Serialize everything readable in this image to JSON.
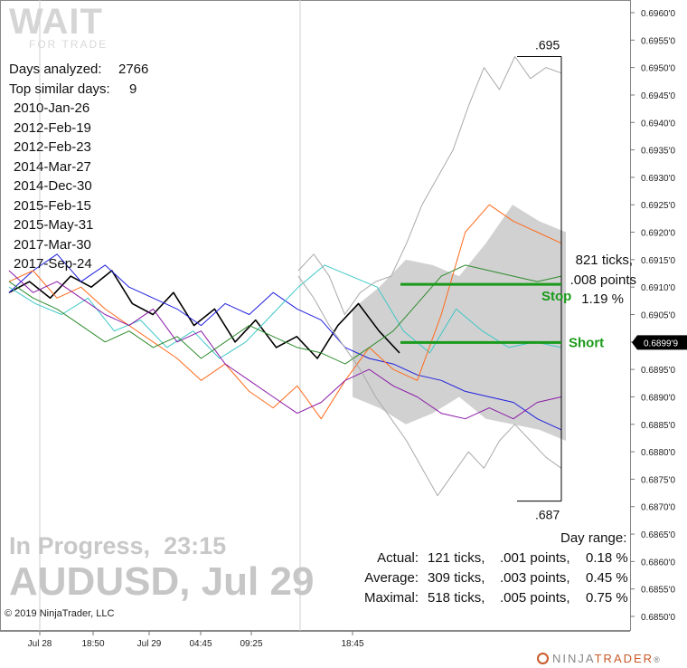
{
  "logo": {
    "main": "WAIT",
    "sub": "FOR TRADE"
  },
  "stats": {
    "days_analyzed_label": "Days analyzed:",
    "days_analyzed_value": "2766",
    "top_similar_label": "Top similar days:",
    "top_similar_value": "9",
    "similar_days": [
      "2010-Jan-26",
      "2012-Feb-19",
      "2012-Feb-23",
      "2014-Mar-27",
      "2014-Dec-30",
      "2015-Feb-15",
      "2015-May-31",
      "2017-Mar-30",
      "2017-Sep-24"
    ]
  },
  "status": {
    "text": "In Progress,",
    "time": "23:15"
  },
  "instrument": {
    "symbol": "AUDUSD,",
    "date": "Jul 29"
  },
  "copyright": "© 2019 NinjaTrader, LLC",
  "brand": {
    "ninja": "NINJA",
    "trader": "TRADER",
    "suffix": "®"
  },
  "annotations": {
    "range_high": ".695",
    "range_low": ".687",
    "ticks_line1": "821 ticks,",
    "ticks_line2": ".008 points",
    "ticks_line3": "1.19 %",
    "stop_label": "Stop",
    "short_label": "Short",
    "day_range_title": "Day range:",
    "rows": [
      {
        "label": "Actual:",
        "ticks": "121 ticks,",
        "points": ".001 points,",
        "pct": "0.18 %"
      },
      {
        "label": "Average:",
        "ticks": "309 ticks,",
        "points": ".003 points,",
        "pct": "0.45 %"
      },
      {
        "label": "Maximal:",
        "ticks": "518 ticks,",
        "points": ".005 points,",
        "pct": "0.75 %"
      }
    ]
  },
  "colors": {
    "stop_line": "#1a9a1a",
    "short_line": "#1a9a1a",
    "price_box": "#000000",
    "band": "#c9c9c9"
  },
  "chart_data": {
    "type": "line",
    "title": "AUDUSD, Jul 29",
    "y_axis": {
      "min": 0.685,
      "max": 0.696,
      "step": 0.0005
    },
    "y_tick_labels": [
      "0.6960'0",
      "0.6955'0",
      "0.6950'0",
      "0.6945'0",
      "0.6940'0",
      "0.6935'0",
      "0.6930'0",
      "0.6925'0",
      "0.6920'0",
      "0.6915'0",
      "0.6910'0",
      "0.6905'0",
      "0.6900'0",
      "0.6895'0",
      "0.6890'0",
      "0.6885'0",
      "0.6880'0",
      "0.6875'0",
      "0.6870'0",
      "0.6865'0",
      "0.6860'0",
      "0.6855'0",
      "0.6850'0"
    ],
    "x_tick_labels": [
      "Jul 28",
      "18:50",
      "Jul 29",
      "04:45",
      "09:25",
      "18:45"
    ],
    "current_price": "0.6899'9",
    "current_price_value": 0.68999,
    "stop_level": 0.69105,
    "short_level": 0.68999,
    "range_high": 0.6952,
    "range_low": 0.6871,
    "series": [
      {
        "color": "#000000",
        "values": [
          0.6909,
          0.6911,
          0.6908,
          0.6912,
          0.691,
          0.6913,
          0.6907,
          0.6905,
          0.6909,
          0.6903,
          0.6906,
          0.69,
          0.6904,
          0.6899,
          0.6901,
          0.6897,
          0.6903,
          0.6907,
          0.6902,
          0.6898
        ]
      },
      {
        "color": "#1f1fe0",
        "values": [
          0.6909,
          0.6913,
          0.6916,
          0.6911,
          0.6914,
          0.691,
          0.6908,
          0.6906,
          0.6903,
          0.6907,
          0.6905,
          0.6909,
          0.6906,
          0.6904,
          0.6899,
          0.6897,
          0.6896,
          0.6894,
          0.6893,
          0.6891,
          0.689,
          0.6889,
          0.6886,
          0.6884
        ]
      },
      {
        "color": "#3fc7c7",
        "values": [
          0.691,
          0.6907,
          0.6905,
          0.6908,
          0.6902,
          0.6904,
          0.6899,
          0.6902,
          0.6897,
          0.69,
          0.6905,
          0.691,
          0.6914,
          0.6912,
          0.691,
          0.6902,
          0.6898,
          0.6906,
          0.6902,
          0.6899,
          0.69,
          0.6899
        ]
      },
      {
        "color": "#ff6a1a",
        "values": [
          0.6911,
          0.6913,
          0.6908,
          0.691,
          0.6906,
          0.6903,
          0.69,
          0.6897,
          0.6893,
          0.6896,
          0.6891,
          0.6888,
          0.6892,
          0.6886,
          0.6893,
          0.6899,
          0.6895,
          0.6893,
          0.6905,
          0.692,
          0.6925,
          0.6922,
          0.692,
          0.6918
        ]
      },
      {
        "color": "#8a1aa8",
        "values": [
          0.6913,
          0.6909,
          0.6911,
          0.6908,
          0.6905,
          0.6903,
          0.6906,
          0.69,
          0.6902,
          0.6896,
          0.6893,
          0.689,
          0.6887,
          0.6889,
          0.6893,
          0.6895,
          0.6892,
          0.689,
          0.6887,
          0.6886,
          0.6888,
          0.6886,
          0.6889,
          0.689
        ]
      },
      {
        "color": "#2e8b2e",
        "values": [
          0.6911,
          0.6908,
          0.6906,
          0.6903,
          0.69,
          0.6902,
          0.6899,
          0.6901,
          0.6897,
          0.69,
          0.6903,
          0.6901,
          0.6899,
          0.6898,
          0.6896,
          0.6899,
          0.6902,
          0.6907,
          0.6912,
          0.6914,
          0.6913,
          0.6912,
          0.6911,
          0.6912
        ]
      },
      {
        "color": "#aaaaaa",
        "values": [
          0.6913,
          0.6916,
          0.6912,
          0.6905,
          0.6909,
          0.6911,
          0.6912,
          0.6918,
          0.6925,
          0.693,
          0.6935,
          0.6943,
          0.695,
          0.6946,
          0.6952,
          0.6948,
          0.695,
          0.6949
        ]
      },
      {
        "color": "#aaaaaa",
        "values": [
          0.6912,
          0.6908,
          0.6903,
          0.6899,
          0.6895,
          0.689,
          0.6886,
          0.6882,
          0.6877,
          0.6872,
          0.6876,
          0.688,
          0.6877,
          0.6882,
          0.6885,
          0.6882,
          0.6879,
          0.6877
        ]
      }
    ]
  }
}
